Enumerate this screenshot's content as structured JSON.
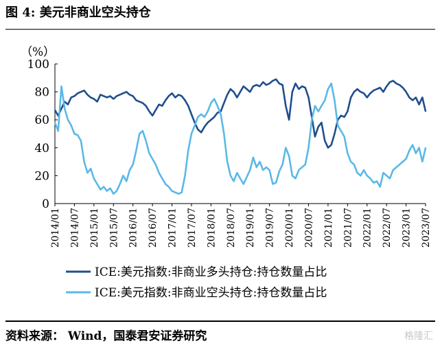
{
  "figure": {
    "title": "图 4:  美元非商业空头持仓",
    "source": "资料来源：  Wind，国泰君安证券研究",
    "watermark": "格隆汇"
  },
  "colors": {
    "long": "#1F4E8C",
    "short": "#5BB8E6",
    "axis": "#000000"
  },
  "chart_data": {
    "type": "line",
    "title": "",
    "ylabel": "（%）",
    "xlabel": "",
    "ylim": [
      0,
      100
    ],
    "yticks": [
      0,
      20,
      40,
      60,
      80,
      100
    ],
    "xlim": [
      "2014-01",
      "2023-07"
    ],
    "xticks": [
      "2014/01",
      "2014/07",
      "2015/01",
      "2015/07",
      "2016/01",
      "2016/07",
      "2017/01",
      "2017/07",
      "2018/01",
      "2018/07",
      "2019/01",
      "2019/07",
      "2020/01",
      "2020/07",
      "2021/01",
      "2021/07",
      "2022/01",
      "2022/07",
      "2023/01",
      "2023/07"
    ],
    "grid": false,
    "legend": "bottom",
    "series": [
      {
        "name": "ICE:美元指数:非商业多头持仓:持仓数量占比",
        "color": "#1F4E8C",
        "points": [
          [
            "2014-01",
            67
          ],
          [
            "2014-02",
            63
          ],
          [
            "2014-03",
            68
          ],
          [
            "2014-04",
            73
          ],
          [
            "2014-05",
            71
          ],
          [
            "2014-06",
            76
          ],
          [
            "2014-07",
            77
          ],
          [
            "2014-08",
            79
          ],
          [
            "2014-09",
            80
          ],
          [
            "2014-10",
            81
          ],
          [
            "2014-11",
            78
          ],
          [
            "2014-12",
            76
          ],
          [
            "2015-01",
            75
          ],
          [
            "2015-02",
            73
          ],
          [
            "2015-03",
            78
          ],
          [
            "2015-04",
            77
          ],
          [
            "2015-05",
            76
          ],
          [
            "2015-06",
            77
          ],
          [
            "2015-07",
            75
          ],
          [
            "2015-08",
            77
          ],
          [
            "2015-09",
            78
          ],
          [
            "2015-10",
            79
          ],
          [
            "2015-11",
            80
          ],
          [
            "2015-12",
            78
          ],
          [
            "2016-01",
            77
          ],
          [
            "2016-02",
            74
          ],
          [
            "2016-03",
            73
          ],
          [
            "2016-04",
            72
          ],
          [
            "2016-05",
            70
          ],
          [
            "2016-06",
            66
          ],
          [
            "2016-07",
            63
          ],
          [
            "2016-08",
            67
          ],
          [
            "2016-09",
            71
          ],
          [
            "2016-10",
            70
          ],
          [
            "2016-11",
            74
          ],
          [
            "2016-12",
            77
          ],
          [
            "2017-01",
            79
          ],
          [
            "2017-02",
            76
          ],
          [
            "2017-03",
            78
          ],
          [
            "2017-04",
            77
          ],
          [
            "2017-05",
            74
          ],
          [
            "2017-06",
            70
          ],
          [
            "2017-07",
            64
          ],
          [
            "2017-08",
            58
          ],
          [
            "2017-09",
            53
          ],
          [
            "2017-10",
            51
          ],
          [
            "2017-11",
            55
          ],
          [
            "2017-12",
            58
          ],
          [
            "2018-01",
            60
          ],
          [
            "2018-02",
            62
          ],
          [
            "2018-03",
            65
          ],
          [
            "2018-04",
            66
          ],
          [
            "2018-05",
            72
          ],
          [
            "2018-06",
            78
          ],
          [
            "2018-07",
            82
          ],
          [
            "2018-08",
            80
          ],
          [
            "2018-09",
            76
          ],
          [
            "2018-10",
            80
          ],
          [
            "2018-11",
            84
          ],
          [
            "2018-12",
            82
          ],
          [
            "2019-01",
            80
          ],
          [
            "2019-02",
            84
          ],
          [
            "2019-03",
            85
          ],
          [
            "2019-04",
            84
          ],
          [
            "2019-05",
            87
          ],
          [
            "2019-06",
            85
          ],
          [
            "2019-07",
            86
          ],
          [
            "2019-08",
            88
          ],
          [
            "2019-09",
            89
          ],
          [
            "2019-10",
            86
          ],
          [
            "2019-11",
            85
          ],
          [
            "2019-12",
            70
          ],
          [
            "2020-01",
            60
          ],
          [
            "2020-02",
            80
          ],
          [
            "2020-03",
            86
          ],
          [
            "2020-04",
            82
          ],
          [
            "2020-05",
            84
          ],
          [
            "2020-06",
            83
          ],
          [
            "2020-07",
            76
          ],
          [
            "2020-08",
            62
          ],
          [
            "2020-09",
            48
          ],
          [
            "2020-10",
            55
          ],
          [
            "2020-11",
            58
          ],
          [
            "2020-12",
            45
          ],
          [
            "2021-01",
            40
          ],
          [
            "2021-02",
            42
          ],
          [
            "2021-03",
            50
          ],
          [
            "2021-04",
            60
          ],
          [
            "2021-05",
            63
          ],
          [
            "2021-06",
            62
          ],
          [
            "2021-07",
            66
          ],
          [
            "2021-08",
            76
          ],
          [
            "2021-09",
            80
          ],
          [
            "2021-10",
            82
          ],
          [
            "2021-11",
            80
          ],
          [
            "2021-12",
            79
          ],
          [
            "2022-01",
            76
          ],
          [
            "2022-02",
            79
          ],
          [
            "2022-03",
            81
          ],
          [
            "2022-04",
            82
          ],
          [
            "2022-05",
            83
          ],
          [
            "2022-06",
            80
          ],
          [
            "2022-07",
            84
          ],
          [
            "2022-08",
            87
          ],
          [
            "2022-09",
            88
          ],
          [
            "2022-10",
            86
          ],
          [
            "2022-11",
            85
          ],
          [
            "2022-12",
            83
          ],
          [
            "2023-01",
            80
          ],
          [
            "2023-02",
            76
          ],
          [
            "2023-03",
            74
          ],
          [
            "2023-04",
            76
          ],
          [
            "2023-05",
            71
          ],
          [
            "2023-06",
            76
          ],
          [
            "2023-07",
            66
          ]
        ]
      },
      {
        "name": "ICE:美元指数:非商业空头持仓:持仓数量占比",
        "color": "#5BB8E6",
        "points": [
          [
            "2014-01",
            58
          ],
          [
            "2014-02",
            52
          ],
          [
            "2014-03",
            84
          ],
          [
            "2014-04",
            68
          ],
          [
            "2014-05",
            60
          ],
          [
            "2014-06",
            56
          ],
          [
            "2014-07",
            50
          ],
          [
            "2014-08",
            49
          ],
          [
            "2014-09",
            45
          ],
          [
            "2014-10",
            30
          ],
          [
            "2014-11",
            22
          ],
          [
            "2014-12",
            25
          ],
          [
            "2015-01",
            18
          ],
          [
            "2015-02",
            14
          ],
          [
            "2015-03",
            10
          ],
          [
            "2015-04",
            12
          ],
          [
            "2015-05",
            9
          ],
          [
            "2015-06",
            11
          ],
          [
            "2015-07",
            7
          ],
          [
            "2015-08",
            9
          ],
          [
            "2015-09",
            14
          ],
          [
            "2015-10",
            20
          ],
          [
            "2015-11",
            16
          ],
          [
            "2015-12",
            24
          ],
          [
            "2016-01",
            28
          ],
          [
            "2016-02",
            38
          ],
          [
            "2016-03",
            50
          ],
          [
            "2016-04",
            52
          ],
          [
            "2016-05",
            45
          ],
          [
            "2016-06",
            36
          ],
          [
            "2016-07",
            32
          ],
          [
            "2016-08",
            28
          ],
          [
            "2016-09",
            22
          ],
          [
            "2016-10",
            18
          ],
          [
            "2016-11",
            14
          ],
          [
            "2016-12",
            12
          ],
          [
            "2017-01",
            9
          ],
          [
            "2017-02",
            8
          ],
          [
            "2017-03",
            7
          ],
          [
            "2017-04",
            8
          ],
          [
            "2017-05",
            20
          ],
          [
            "2017-06",
            38
          ],
          [
            "2017-07",
            50
          ],
          [
            "2017-08",
            56
          ],
          [
            "2017-09",
            62
          ],
          [
            "2017-10",
            64
          ],
          [
            "2017-11",
            62
          ],
          [
            "2017-12",
            66
          ],
          [
            "2018-01",
            72
          ],
          [
            "2018-02",
            75
          ],
          [
            "2018-03",
            70
          ],
          [
            "2018-04",
            64
          ],
          [
            "2018-05",
            50
          ],
          [
            "2018-06",
            30
          ],
          [
            "2018-07",
            20
          ],
          [
            "2018-08",
            16
          ],
          [
            "2018-09",
            22
          ],
          [
            "2018-10",
            18
          ],
          [
            "2018-11",
            14
          ],
          [
            "2018-12",
            19
          ],
          [
            "2019-01",
            24
          ],
          [
            "2019-02",
            33
          ],
          [
            "2019-03",
            26
          ],
          [
            "2019-04",
            30
          ],
          [
            "2019-05",
            24
          ],
          [
            "2019-06",
            26
          ],
          [
            "2019-07",
            24
          ],
          [
            "2019-08",
            14
          ],
          [
            "2019-09",
            15
          ],
          [
            "2019-10",
            23
          ],
          [
            "2019-11",
            28
          ],
          [
            "2019-12",
            40
          ],
          [
            "2020-01",
            34
          ],
          [
            "2020-02",
            20
          ],
          [
            "2020-03",
            18
          ],
          [
            "2020-04",
            24
          ],
          [
            "2020-05",
            26
          ],
          [
            "2020-06",
            28
          ],
          [
            "2020-07",
            40
          ],
          [
            "2020-08",
            60
          ],
          [
            "2020-09",
            70
          ],
          [
            "2020-10",
            66
          ],
          [
            "2020-11",
            70
          ],
          [
            "2020-12",
            74
          ],
          [
            "2021-01",
            82
          ],
          [
            "2021-02",
            86
          ],
          [
            "2021-03",
            74
          ],
          [
            "2021-04",
            56
          ],
          [
            "2021-05",
            52
          ],
          [
            "2021-06",
            48
          ],
          [
            "2021-07",
            36
          ],
          [
            "2021-08",
            30
          ],
          [
            "2021-09",
            28
          ],
          [
            "2021-10",
            22
          ],
          [
            "2021-11",
            20
          ],
          [
            "2021-12",
            24
          ],
          [
            "2022-01",
            20
          ],
          [
            "2022-02",
            18
          ],
          [
            "2022-03",
            15
          ],
          [
            "2022-04",
            16
          ],
          [
            "2022-05",
            12
          ],
          [
            "2022-06",
            22
          ],
          [
            "2022-07",
            20
          ],
          [
            "2022-08",
            18
          ],
          [
            "2022-09",
            24
          ],
          [
            "2022-10",
            26
          ],
          [
            "2022-11",
            28
          ],
          [
            "2022-12",
            30
          ],
          [
            "2023-01",
            32
          ],
          [
            "2023-02",
            38
          ],
          [
            "2023-03",
            42
          ],
          [
            "2023-04",
            36
          ],
          [
            "2023-05",
            40
          ],
          [
            "2023-06",
            30
          ],
          [
            "2023-07",
            40
          ]
        ]
      }
    ]
  }
}
